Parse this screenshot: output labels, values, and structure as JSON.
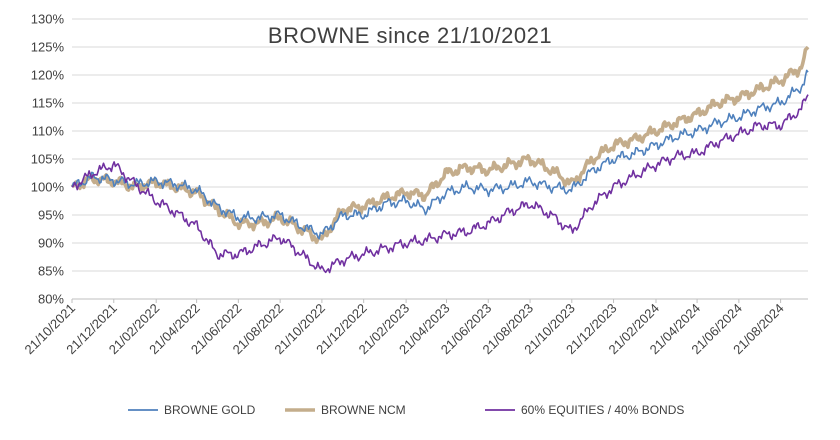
{
  "chart_data": {
    "type": "line",
    "title": "BROWNE since 21/10/2021",
    "xlabel": "",
    "ylabel": "",
    "ylim": [
      0.8,
      1.3
    ],
    "yticks": [
      "80%",
      "85%",
      "90%",
      "95%",
      "100%",
      "105%",
      "110%",
      "115%",
      "120%",
      "125%",
      "130%"
    ],
    "x_start": "21/10/2021",
    "x_end": "30/09/2024",
    "xticks": [
      "21/10/2021",
      "21/12/2021",
      "21/02/2022",
      "21/04/2022",
      "21/06/2022",
      "21/08/2022",
      "21/10/2022",
      "21/12/2022",
      "21/02/2023",
      "21/04/2023",
      "21/06/2023",
      "21/08/2023",
      "21/10/2023",
      "21/12/2023",
      "21/02/2024",
      "21/04/2024",
      "21/06/2024",
      "21/08/2024"
    ],
    "grid": true,
    "legend_position": "bottom",
    "x": [
      "21/10/2021",
      "21/11/2021",
      "21/12/2021",
      "21/01/2022",
      "21/02/2022",
      "21/03/2022",
      "21/04/2022",
      "21/05/2022",
      "21/06/2022",
      "21/07/2022",
      "21/08/2022",
      "21/09/2022",
      "21/10/2022",
      "21/11/2022",
      "21/12/2022",
      "21/01/2023",
      "21/02/2023",
      "21/03/2023",
      "21/04/2023",
      "21/05/2023",
      "21/06/2023",
      "21/07/2023",
      "21/08/2023",
      "21/09/2023",
      "21/10/2023",
      "21/11/2023",
      "21/12/2023",
      "21/01/2024",
      "21/02/2024",
      "21/03/2024",
      "21/04/2024",
      "21/05/2024",
      "21/06/2024",
      "21/07/2024",
      "21/08/2024",
      "21/09/2024",
      "30/09/2024"
    ],
    "series": [
      {
        "name": "BROWNE GOLD",
        "color": "#4f81bd",
        "values": [
          1.0,
          1.018,
          1.012,
          1.005,
          1.01,
          1.005,
          0.995,
          0.965,
          0.945,
          0.945,
          0.95,
          0.93,
          0.915,
          0.95,
          0.95,
          0.97,
          0.975,
          0.96,
          0.99,
          1.0,
          0.995,
          1.0,
          1.01,
          1.0,
          0.995,
          1.03,
          1.05,
          1.06,
          1.075,
          1.09,
          1.1,
          1.115,
          1.125,
          1.14,
          1.15,
          1.18,
          1.205
        ]
      },
      {
        "name": "BROWNE NCM",
        "color": "#c4ad8c",
        "values": [
          1.0,
          1.015,
          1.01,
          1.0,
          1.008,
          1.0,
          0.99,
          0.96,
          0.935,
          0.935,
          0.945,
          0.925,
          0.905,
          0.96,
          0.965,
          0.98,
          0.99,
          0.985,
          1.025,
          1.035,
          1.03,
          1.04,
          1.05,
          1.03,
          1.005,
          1.05,
          1.075,
          1.085,
          1.1,
          1.115,
          1.13,
          1.15,
          1.16,
          1.175,
          1.19,
          1.215,
          1.25
        ]
      },
      {
        "name": "60% EQUITIES / 40% BONDS",
        "color": "#7030a0",
        "values": [
          1.0,
          1.025,
          1.04,
          1.005,
          0.975,
          0.955,
          0.93,
          0.88,
          0.88,
          0.895,
          0.91,
          0.88,
          0.85,
          0.87,
          0.88,
          0.89,
          0.9,
          0.905,
          0.915,
          0.92,
          0.935,
          0.955,
          0.97,
          0.95,
          0.92,
          0.97,
          1.0,
          1.02,
          1.04,
          1.055,
          1.06,
          1.08,
          1.095,
          1.11,
          1.11,
          1.14,
          1.165
        ]
      }
    ]
  }
}
